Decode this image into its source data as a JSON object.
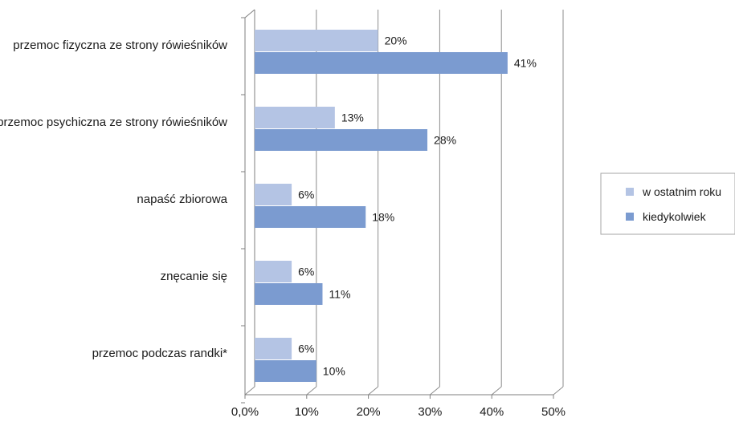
{
  "chart_data": {
    "type": "bar",
    "orientation": "horizontal",
    "categories": [
      "przemoc fizyczna ze strony rówieśników",
      "przemoc psychiczna ze strony rówieśników",
      "napaść zbiorowa",
      "znęcanie się",
      "przemoc podczas randki*"
    ],
    "series": [
      {
        "name": "w ostatnim roku",
        "values": [
          20,
          13,
          6,
          6,
          6
        ],
        "labels": [
          "20%",
          "13%",
          "6%",
          "6%",
          "6%"
        ],
        "color": "#b4c4e4"
      },
      {
        "name": "kiedykolwiek",
        "values": [
          41,
          28,
          18,
          11,
          10
        ],
        "labels": [
          "41%",
          "28%",
          "18%",
          "11%",
          "10%"
        ],
        "color": "#7b9bd0"
      }
    ],
    "xlim": [
      0,
      50
    ],
    "x_ticks": [
      "0,0%",
      "10%",
      "20%",
      "30%",
      "40%",
      "50%"
    ],
    "grid": true,
    "legend_position": "right",
    "style": "3d-depth"
  }
}
